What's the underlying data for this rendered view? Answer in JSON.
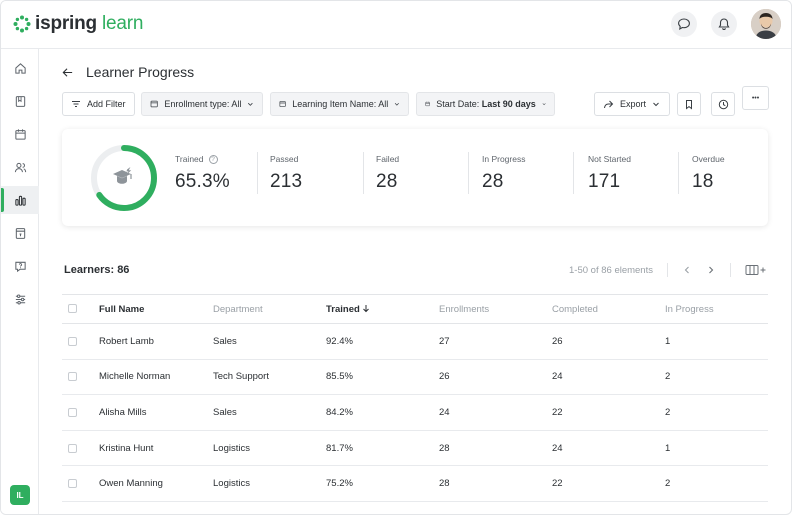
{
  "brand": {
    "name_main": "ispring",
    "name_accent": "learn"
  },
  "header": {
    "chat_icon": "chat-bubble-icon",
    "bell_icon": "bell-icon"
  },
  "sidebar": {
    "items": [
      {
        "name": "home-icon"
      },
      {
        "name": "book-icon"
      },
      {
        "name": "calendar-icon"
      },
      {
        "name": "users-icon"
      },
      {
        "name": "reports-icon",
        "active": true
      },
      {
        "name": "certificate-icon"
      },
      {
        "name": "help-icon"
      },
      {
        "name": "settings-icon"
      }
    ],
    "user_initials": "IL"
  },
  "page": {
    "title": "Learner Progress"
  },
  "filters": {
    "add_filter": "Add Filter",
    "enrollment_type": "Enrollment type: All",
    "learning_item": "Learning Item Name: All",
    "start_date_label": "Start Date:",
    "start_date_value": "Last 90 days",
    "export": "Export",
    "more": "•••"
  },
  "stats": {
    "trained_label": "Trained",
    "trained_value": "65.3%",
    "trained_fraction": 0.653,
    "passed_label": "Passed",
    "passed_value": "213",
    "failed_label": "Failed",
    "failed_value": "28",
    "in_progress_label": "In Progress",
    "in_progress_value": "28",
    "not_started_label": "Not Started",
    "not_started_value": "171",
    "overdue_label": "Overdue",
    "overdue_value": "18"
  },
  "colors": {
    "accent": "#2fae5f"
  },
  "learners": {
    "title": "Learners: 86",
    "pager": "1-50 of 86 elements",
    "columns": [
      "Full Name",
      "Department",
      "Trained",
      "Enrollments",
      "Completed",
      "In Progress"
    ],
    "rows": [
      [
        "Robert Lamb",
        "Sales",
        "92.4%",
        "27",
        "26",
        "1"
      ],
      [
        "Michelle Norman",
        "Tech Support",
        "85.5%",
        "26",
        "24",
        "2"
      ],
      [
        "Alisha Mills",
        "Sales",
        "84.2%",
        "24",
        "22",
        "2"
      ],
      [
        "Kristina Hunt",
        "Logistics",
        "81.7%",
        "28",
        "24",
        "1"
      ],
      [
        "Owen Manning",
        "Logistics",
        "75.2%",
        "28",
        "22",
        "2"
      ]
    ]
  }
}
